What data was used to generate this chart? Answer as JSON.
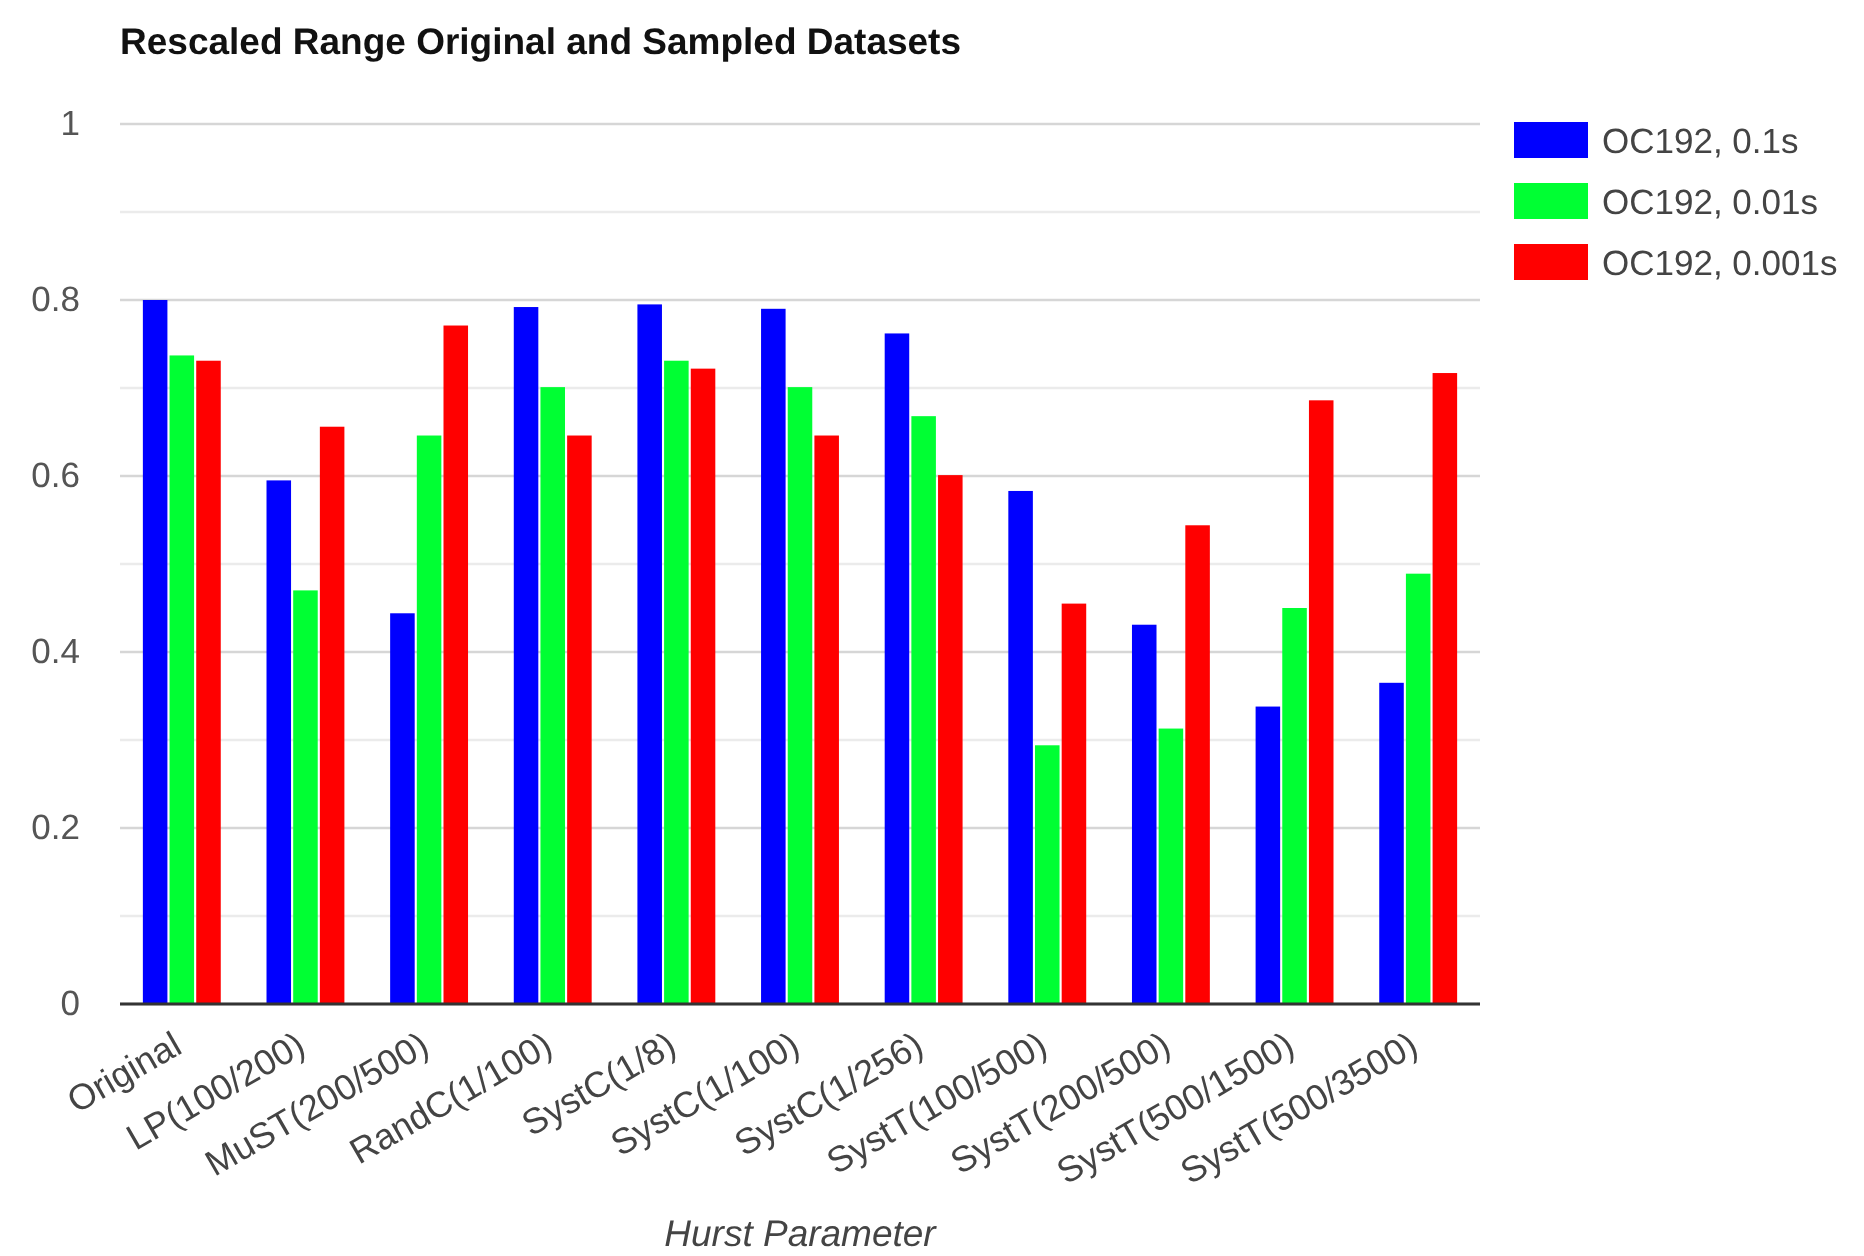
{
  "chart_data": {
    "type": "bar",
    "title": "Rescaled Range Original and Sampled Datasets",
    "xlabel": "Hurst Parameter",
    "categories": [
      "Original",
      "LP(100/200)",
      "MuST(200/500)",
      "RandC(1/100)",
      "SystC(1/8)",
      "SystC(1/100)",
      "SystC(1/256)",
      "SystT(100/500)",
      "SystT(200/500)",
      "SystT(500/1500)",
      "SystT(500/3500)"
    ],
    "series": [
      {
        "name": "OC192, 0.1s",
        "color": "#0000ff",
        "values": [
          0.8,
          0.595,
          0.444,
          0.792,
          0.795,
          0.79,
          0.762,
          0.583,
          0.431,
          0.338,
          0.365
        ]
      },
      {
        "name": "OC192, 0.01s",
        "color": "#00ff33",
        "values": [
          0.737,
          0.47,
          0.646,
          0.701,
          0.731,
          0.701,
          0.668,
          0.294,
          0.313,
          0.45,
          0.489
        ]
      },
      {
        "name": "OC192, 0.001s",
        "color": "#ff0000",
        "values": [
          0.731,
          0.656,
          0.771,
          0.646,
          0.722,
          0.646,
          0.601,
          0.455,
          0.544,
          0.686,
          0.717
        ]
      }
    ],
    "ylim": [
      0,
      1
    ],
    "yticks": [
      0,
      {
        "value": 0.1,
        "label": null
      },
      0.2,
      {
        "value": 0.3,
        "label": null
      },
      0.4,
      {
        "value": 0.5,
        "label": null
      },
      0.6,
      {
        "value": 0.7,
        "label": null
      },
      0.8,
      {
        "value": 0.9,
        "label": null
      },
      1
    ],
    "grid": true,
    "legend": "right"
  }
}
